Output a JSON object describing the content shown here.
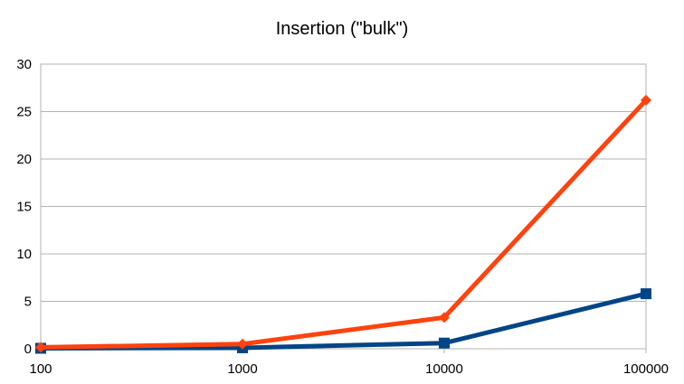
{
  "chart_data": {
    "type": "line",
    "title": "Insertion (\"bulk\")",
    "xlabel": "",
    "ylabel": "",
    "categories": [
      "100",
      "1000",
      "10000",
      "100000"
    ],
    "ylim": [
      0,
      30
    ],
    "yticks": [
      0,
      5,
      10,
      15,
      20,
      25,
      30
    ],
    "grid": true,
    "legend": "none",
    "series": [
      {
        "marker": "square",
        "color": "#004586",
        "values": [
          0.05,
          0.1,
          0.6,
          5.8
        ]
      },
      {
        "marker": "diamond",
        "color": "#ff420e",
        "values": [
          0.15,
          0.5,
          3.3,
          26.2
        ]
      }
    ]
  }
}
